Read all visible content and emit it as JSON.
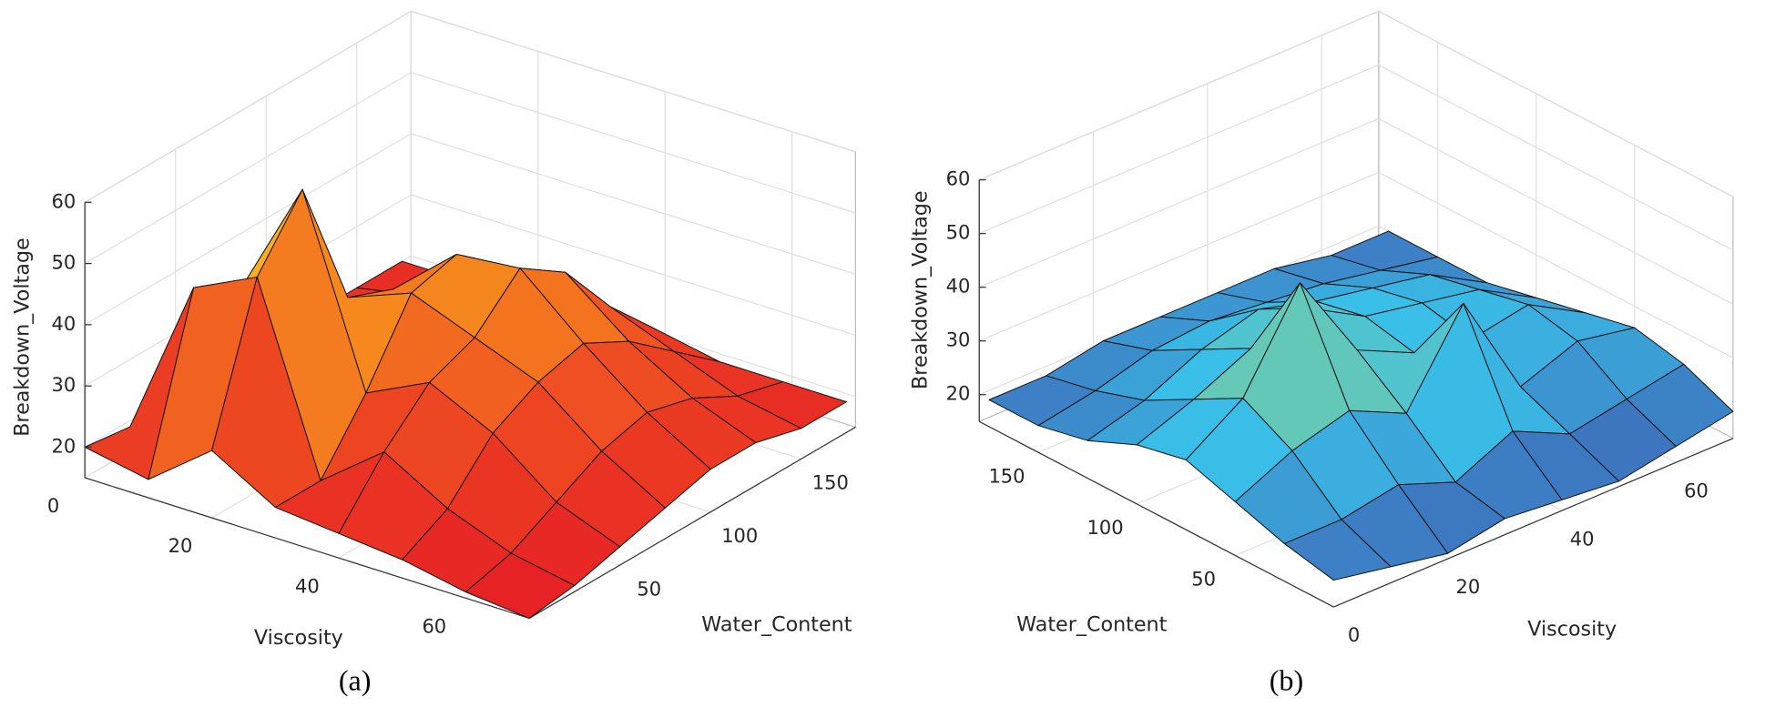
{
  "chart_data": [
    {
      "type": "surface",
      "caption": "(a)",
      "xlabel": "Viscosity",
      "ylabel": "Water_Content",
      "zlabel": "Breakdown_Voltage",
      "x": [
        0,
        10,
        20,
        30,
        40,
        50,
        60,
        70
      ],
      "y": [
        0,
        25,
        50,
        75,
        100,
        125,
        150,
        175
      ],
      "z": [
        [
          20,
          19,
          20,
          20,
          20,
          20,
          20,
          20
        ],
        [
          18,
          45,
          40,
          30,
          28,
          24,
          22,
          20
        ],
        [
          26,
          50,
          60,
          38,
          35,
          30,
          26,
          22
        ],
        [
          20,
          20,
          30,
          42,
          44,
          36,
          28,
          22
        ],
        [
          19,
          28,
          35,
          38,
          45,
          40,
          30,
          22
        ],
        [
          18,
          22,
          30,
          34,
          36,
          32,
          26,
          20
        ],
        [
          16,
          18,
          22,
          26,
          28,
          26,
          22,
          20
        ],
        [
          15,
          16,
          18,
          20,
          22,
          22,
          20,
          20
        ]
      ],
      "xlim": [
        0,
        70
      ],
      "ylim": [
        0,
        180
      ],
      "zlim": [
        15,
        60
      ],
      "xticks": [
        0,
        20,
        40,
        60
      ],
      "yticks": [
        50,
        100,
        150
      ],
      "zticks": [
        20,
        30,
        40,
        50,
        60
      ],
      "grid": true,
      "colormap": [
        "#e51e25",
        "#ee4a22",
        "#f7941d",
        "#ffff33"
      ]
    },
    {
      "type": "surface",
      "caption": "(b)",
      "xlabel": "Viscosity",
      "ylabel": "Water_Content",
      "zlabel": "Breakdown_Voltage",
      "x": [
        0,
        10,
        20,
        30,
        40,
        50,
        60,
        70
      ],
      "y": [
        0,
        25,
        50,
        75,
        100,
        125,
        150,
        175
      ],
      "z": [
        [
          20,
          22,
          25,
          28,
          26,
          22,
          20,
          20
        ],
        [
          18,
          22,
          30,
          35,
          30,
          25,
          22,
          20
        ],
        [
          16,
          24,
          33,
          52,
          35,
          30,
          25,
          22
        ],
        [
          18,
          20,
          28,
          35,
          38,
          33,
          26,
          22
        ],
        [
          17,
          25,
          44,
          30,
          32,
          30,
          25,
          22
        ],
        [
          16,
          20,
          24,
          28,
          30,
          28,
          24,
          22
        ],
        [
          18,
          22,
          28,
          30,
          28,
          26,
          22,
          20
        ],
        [
          20,
          24,
          26,
          24,
          22,
          20,
          20,
          20
        ]
      ],
      "xlim": [
        0,
        70
      ],
      "ylim": [
        0,
        180
      ],
      "zlim": [
        15,
        60
      ],
      "xticks": [
        0,
        20,
        40,
        60
      ],
      "yticks": [
        50,
        100,
        150
      ],
      "zticks": [
        20,
        30,
        40,
        50,
        60
      ],
      "grid": true,
      "colormap": [
        "#3e5bb0",
        "#3ac0e8",
        "#8dcf8a",
        "#f5e62a"
      ]
    }
  ]
}
